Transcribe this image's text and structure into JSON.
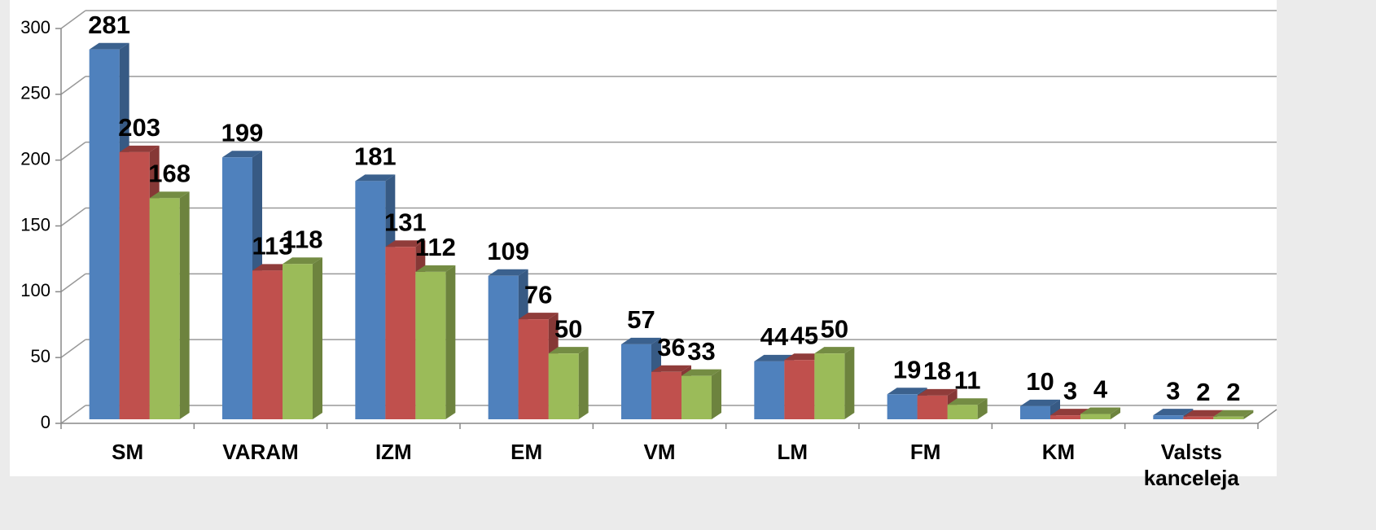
{
  "chart_data": {
    "type": "bar3d",
    "categories": [
      "SM",
      "VARAM",
      "IZM",
      "EM",
      "VM",
      "LM",
      "FM",
      "KM",
      "Valsts kanceleja"
    ],
    "series": [
      {
        "color": "#4f81bd",
        "values": [
          281,
          199,
          181,
          109,
          57,
          44,
          19,
          10,
          3
        ]
      },
      {
        "color": "#c0504d",
        "values": [
          203,
          113,
          131,
          76,
          36,
          45,
          18,
          3,
          2
        ]
      },
      {
        "color": "#9bbb59",
        "values": [
          168,
          118,
          112,
          50,
          33,
          50,
          11,
          4,
          2
        ]
      }
    ],
    "ylim": [
      0,
      300
    ],
    "yticks": [
      0,
      50,
      100,
      150,
      200,
      250,
      300
    ],
    "grid": true
  }
}
